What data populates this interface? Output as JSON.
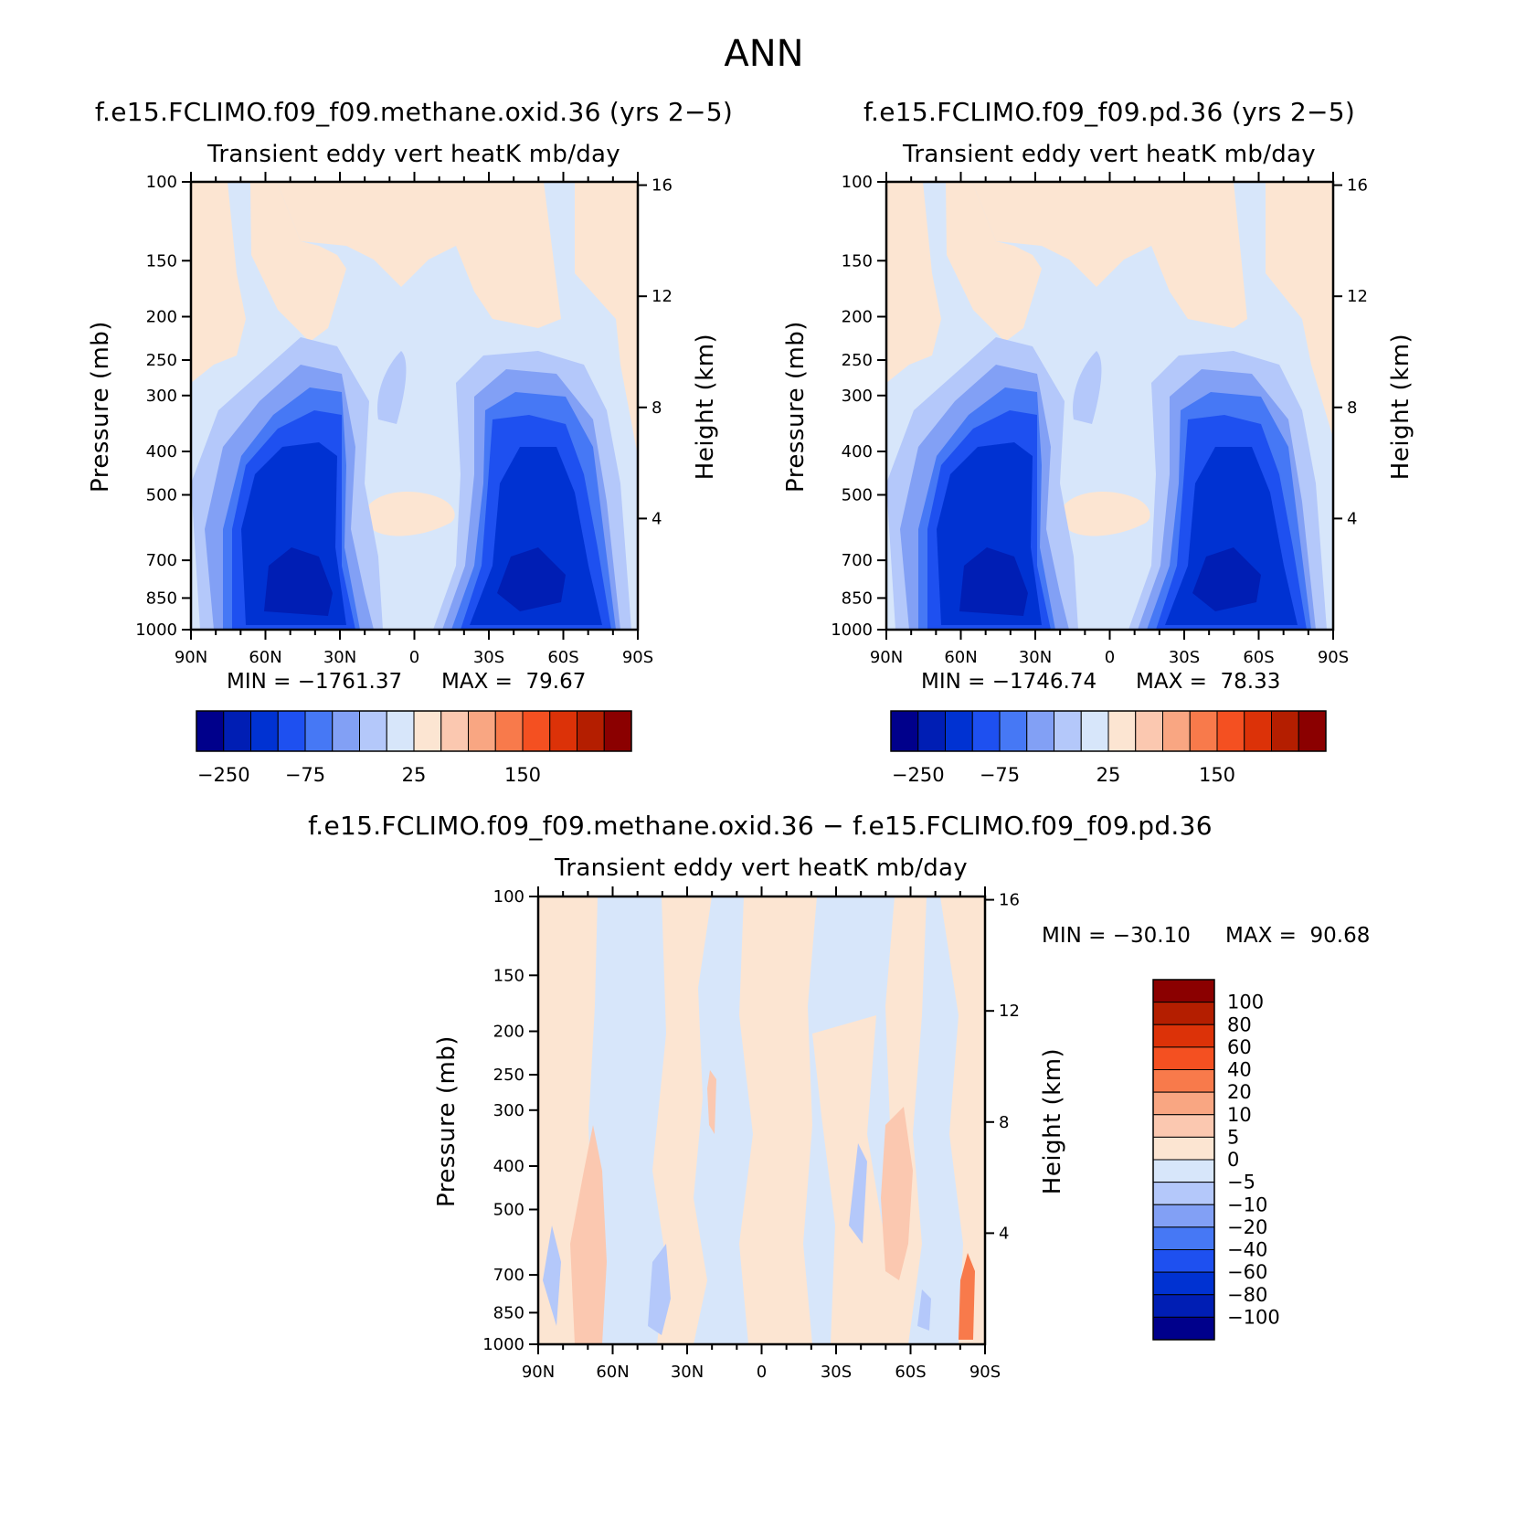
{
  "figure": {
    "main_title": "ANN",
    "panels": [
      {
        "case_title": "f.e15.FCLIMO.f09_f09.methane.oxid.36 (yrs 2−5)",
        "var_title": "Transient eddy vert heatK mb/day",
        "ylabel": "Pressure (mb)",
        "ylabel_right": "Height (km)",
        "stats_min": "MIN = −1761.37",
        "stats_max": "MAX =  79.67"
      },
      {
        "case_title": "f.e15.FCLIMO.f09_f09.pd.36 (yrs 2−5)",
        "var_title": "Transient eddy vert heatK mb/day",
        "ylabel": "Pressure (mb)",
        "ylabel_right": "Height (km)",
        "stats_min": "MIN = −1746.74",
        "stats_max": "MAX =  78.33"
      },
      {
        "case_title": "f.e15.FCLIMO.f09_f09.methane.oxid.36 − f.e15.FCLIMO.f09_f09.pd.36",
        "var_title": "Transient eddy vert heatK mb/day",
        "ylabel": "Pressure (mb)",
        "ylabel_right": "Height (km)",
        "stats_min": "MIN = −30.10",
        "stats_max": "MAX =  90.68"
      }
    ],
    "colorbars": {
      "absolute": {
        "colors": [
          "#00008b",
          "#001eb4",
          "#0032d2",
          "#1e50f0",
          "#4678f5",
          "#82a0f5",
          "#b4c8fa",
          "#d7e6fa",
          "#fce5d2",
          "#fbc8b0",
          "#f9a682",
          "#f87a4b",
          "#f45021",
          "#dc3208",
          "#b41e00",
          "#8b0000"
        ],
        "shown_labels": [
          "−250",
          "−75",
          "25",
          "150"
        ]
      },
      "difference": {
        "colors": [
          "#8b0000",
          "#b41e00",
          "#dc3208",
          "#f45021",
          "#f87a4b",
          "#f9a682",
          "#fbc8b0",
          "#fce5d2",
          "#d7e6fa",
          "#b4c8fa",
          "#82a0f5",
          "#4678f5",
          "#1e50f0",
          "#0032d2",
          "#001eb4",
          "#00008b"
        ],
        "labels": [
          "100",
          "80",
          "60",
          "40",
          "20",
          "10",
          "5",
          "0",
          "−5",
          "−10",
          "−20",
          "−40",
          "−60",
          "−80",
          "−100"
        ]
      }
    }
  },
  "chart_data": [
    {
      "type": "heatmap",
      "title": "f.e15.FCLIMO.f09_f09.methane.oxid.36 (yrs 2−5)",
      "subtitle": "Transient eddy vert heatK mb/day",
      "xlabel": "",
      "ylabel": "Pressure (mb)",
      "ylabel_right": "Height (km)",
      "x_ticks": [
        "90N",
        "60N",
        "30N",
        "0",
        "30S",
        "60S",
        "90S"
      ],
      "x_range": [
        90,
        -90
      ],
      "y_ticks": [
        100,
        150,
        200,
        250,
        300,
        400,
        500,
        700,
        850,
        1000
      ],
      "y_range": [
        1000,
        100
      ],
      "y_scale": "log",
      "y_right_ticks": [
        4,
        8,
        12,
        16
      ],
      "min": -1761.37,
      "max": 79.67,
      "contour_levels": [
        -250,
        -200,
        -150,
        -100,
        -75,
        -50,
        -25,
        0,
        25,
        50,
        75,
        100,
        150,
        200,
        250
      ],
      "shown_level_labels": [
        -250,
        -75,
        25,
        150
      ],
      "features": [
        {
          "description": "strong negative cores",
          "lat_centers": [
            45,
            -50
          ],
          "pressure_range": [
            300,
            1000
          ],
          "approx_value": -250
        },
        {
          "description": "weak positive upper troposphere/stratosphere",
          "pressure_range": [
            100,
            250
          ],
          "approx_value": 5
        },
        {
          "description": "weak positive blob near equator",
          "lat_center": 5,
          "pressure": 600,
          "approx_value": 5
        }
      ]
    },
    {
      "type": "heatmap",
      "title": "f.e15.FCLIMO.f09_f09.pd.36 (yrs 2−5)",
      "subtitle": "Transient eddy vert heatK mb/day",
      "xlabel": "",
      "ylabel": "Pressure (mb)",
      "ylabel_right": "Height (km)",
      "x_ticks": [
        "90N",
        "60N",
        "30N",
        "0",
        "30S",
        "60S",
        "90S"
      ],
      "x_range": [
        90,
        -90
      ],
      "y_ticks": [
        100,
        150,
        200,
        250,
        300,
        400,
        500,
        700,
        850,
        1000
      ],
      "y_range": [
        1000,
        100
      ],
      "y_scale": "log",
      "y_right_ticks": [
        4,
        8,
        12,
        16
      ],
      "min": -1746.74,
      "max": 78.33,
      "contour_levels": [
        -250,
        -200,
        -150,
        -100,
        -75,
        -50,
        -25,
        0,
        25,
        50,
        75,
        100,
        150,
        200,
        250
      ],
      "shown_level_labels": [
        -250,
        -75,
        25,
        150
      ],
      "features": [
        {
          "description": "strong negative cores",
          "lat_centers": [
            45,
            -50
          ],
          "pressure_range": [
            300,
            1000
          ],
          "approx_value": -250
        },
        {
          "description": "weak positive upper troposphere/stratosphere",
          "pressure_range": [
            100,
            250
          ],
          "approx_value": 5
        },
        {
          "description": "weak positive blob near equator",
          "lat_center": 5,
          "pressure": 600,
          "approx_value": 5
        }
      ]
    },
    {
      "type": "heatmap",
      "title": "f.e15.FCLIMO.f09_f09.methane.oxid.36 − f.e15.FCLIMO.f09_f09.pd.36",
      "subtitle": "Transient eddy vert heatK mb/day",
      "xlabel": "",
      "ylabel": "Pressure (mb)",
      "ylabel_right": "Height (km)",
      "x_ticks": [
        "90N",
        "60N",
        "30N",
        "0",
        "30S",
        "60S",
        "90S"
      ],
      "x_range": [
        90,
        -90
      ],
      "y_ticks": [
        100,
        150,
        200,
        250,
        300,
        400,
        500,
        700,
        850,
        1000
      ],
      "y_range": [
        1000,
        100
      ],
      "y_scale": "log",
      "y_right_ticks": [
        4,
        8,
        12,
        16
      ],
      "min": -30.1,
      "max": 90.68,
      "contour_levels": [
        -100,
        -80,
        -60,
        -40,
        -20,
        -10,
        -5,
        0,
        5,
        10,
        20,
        40,
        60,
        80,
        100
      ],
      "features": [
        {
          "description": "positive column near 65N",
          "pressure_range": [
            400,
            1000
          ],
          "approx_value": 10
        },
        {
          "description": "positive column near 55S",
          "pressure_range": [
            300,
            800
          ],
          "approx_value": 10
        },
        {
          "description": "strong positive near 85S surface",
          "pressure": 850,
          "approx_value": 40
        },
        {
          "description": "alternating weak bands elsewhere",
          "approx_value_range": [
            -5,
            5
          ]
        }
      ]
    }
  ]
}
